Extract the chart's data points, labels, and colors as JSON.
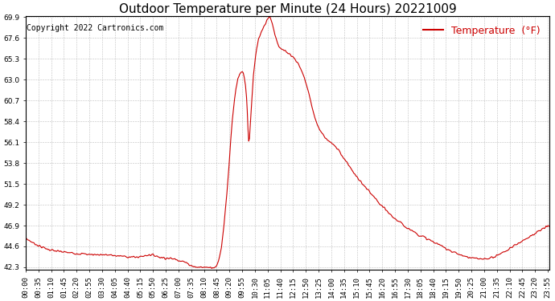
{
  "title": "Outdoor Temperature per Minute (24 Hours) 20221009",
  "copyright": "Copyright 2022 Cartronics.com",
  "legend_label": "Temperature  (°F)",
  "line_color": "#cc0000",
  "background_color": "#ffffff",
  "grid_color": "#b0b0b0",
  "y_min": 42.3,
  "y_max": 69.9,
  "y_ticks": [
    42.3,
    44.6,
    46.9,
    49.2,
    51.5,
    53.8,
    56.1,
    58.4,
    60.7,
    63.0,
    65.3,
    67.6,
    69.9
  ],
  "x_tick_step_minutes": 35,
  "title_fontsize": 11,
  "axis_fontsize": 6.5,
  "copyright_fontsize": 7,
  "legend_fontsize": 9,
  "keypoints": [
    [
      0,
      45.5
    ],
    [
      20,
      45.0
    ],
    [
      40,
      44.6
    ],
    [
      60,
      44.3
    ],
    [
      80,
      44.1
    ],
    [
      100,
      44.0
    ],
    [
      120,
      43.9
    ],
    [
      150,
      43.8
    ],
    [
      180,
      43.7
    ],
    [
      210,
      43.7
    ],
    [
      240,
      43.6
    ],
    [
      270,
      43.5
    ],
    [
      300,
      43.4
    ],
    [
      320,
      43.5
    ],
    [
      340,
      43.7
    ],
    [
      355,
      43.6
    ],
    [
      370,
      43.4
    ],
    [
      390,
      43.3
    ],
    [
      410,
      43.2
    ],
    [
      430,
      43.0
    ],
    [
      445,
      42.7
    ],
    [
      455,
      42.5
    ],
    [
      462,
      42.4
    ],
    [
      468,
      42.3
    ],
    [
      480,
      42.3
    ],
    [
      500,
      42.3
    ],
    [
      515,
      42.3
    ],
    [
      525,
      42.4
    ],
    [
      530,
      43.0
    ],
    [
      538,
      44.5
    ],
    [
      545,
      47.0
    ],
    [
      552,
      50.0
    ],
    [
      558,
      53.0
    ],
    [
      563,
      56.0
    ],
    [
      568,
      58.5
    ],
    [
      573,
      60.5
    ],
    [
      578,
      62.0
    ],
    [
      583,
      63.0
    ],
    [
      588,
      63.5
    ],
    [
      592,
      63.8
    ],
    [
      595,
      63.9
    ],
    [
      598,
      63.7
    ],
    [
      601,
      63.3
    ],
    [
      604,
      62.5
    ],
    [
      607,
      61.0
    ],
    [
      609,
      59.5
    ],
    [
      611,
      57.5
    ],
    [
      613,
      56.2
    ],
    [
      615,
      56.5
    ],
    [
      618,
      58.5
    ],
    [
      622,
      61.0
    ],
    [
      626,
      63.5
    ],
    [
      630,
      65.0
    ],
    [
      635,
      66.5
    ],
    [
      640,
      67.5
    ],
    [
      645,
      68.0
    ],
    [
      648,
      68.3
    ],
    [
      651,
      68.5
    ],
    [
      654,
      68.8
    ],
    [
      657,
      69.0
    ],
    [
      660,
      69.3
    ],
    [
      663,
      69.6
    ],
    [
      666,
      69.8
    ],
    [
      669,
      70.0
    ],
    [
      672,
      69.9
    ],
    [
      675,
      69.6
    ],
    [
      678,
      69.2
    ],
    [
      681,
      68.7
    ],
    [
      684,
      68.2
    ],
    [
      688,
      67.6
    ],
    [
      692,
      67.1
    ],
    [
      696,
      66.7
    ],
    [
      700,
      66.5
    ],
    [
      705,
      66.3
    ],
    [
      710,
      66.2
    ],
    [
      715,
      66.1
    ],
    [
      720,
      66.0
    ],
    [
      725,
      65.9
    ],
    [
      730,
      65.7
    ],
    [
      735,
      65.5
    ],
    [
      740,
      65.3
    ],
    [
      745,
      65.0
    ],
    [
      750,
      64.7
    ],
    [
      755,
      64.3
    ],
    [
      760,
      63.8
    ],
    [
      765,
      63.3
    ],
    [
      770,
      62.7
    ],
    [
      775,
      62.0
    ],
    [
      780,
      61.2
    ],
    [
      785,
      60.4
    ],
    [
      790,
      59.5
    ],
    [
      795,
      58.8
    ],
    [
      800,
      58.2
    ],
    [
      808,
      57.5
    ],
    [
      816,
      57.0
    ],
    [
      824,
      56.6
    ],
    [
      832,
      56.3
    ],
    [
      840,
      56.0
    ],
    [
      848,
      55.7
    ],
    [
      856,
      55.4
    ],
    [
      864,
      55.0
    ],
    [
      872,
      54.5
    ],
    [
      880,
      54.0
    ],
    [
      890,
      53.5
    ],
    [
      900,
      52.8
    ],
    [
      915,
      52.0
    ],
    [
      930,
      51.3
    ],
    [
      945,
      50.6
    ],
    [
      960,
      49.9
    ],
    [
      975,
      49.2
    ],
    [
      990,
      48.6
    ],
    [
      1005,
      48.0
    ],
    [
      1020,
      47.5
    ],
    [
      1040,
      46.9
    ],
    [
      1060,
      46.4
    ],
    [
      1080,
      45.9
    ],
    [
      1100,
      45.5
    ],
    [
      1120,
      45.1
    ],
    [
      1140,
      44.7
    ],
    [
      1160,
      44.3
    ],
    [
      1180,
      43.9
    ],
    [
      1200,
      43.6
    ],
    [
      1215,
      43.4
    ],
    [
      1230,
      43.3
    ],
    [
      1245,
      43.2
    ],
    [
      1260,
      43.2
    ],
    [
      1275,
      43.3
    ],
    [
      1290,
      43.5
    ],
    [
      1305,
      43.8
    ],
    [
      1320,
      44.1
    ],
    [
      1340,
      44.6
    ],
    [
      1360,
      45.1
    ],
    [
      1380,
      45.6
    ],
    [
      1400,
      46.0
    ],
    [
      1420,
      46.5
    ],
    [
      1439,
      46.9
    ]
  ]
}
